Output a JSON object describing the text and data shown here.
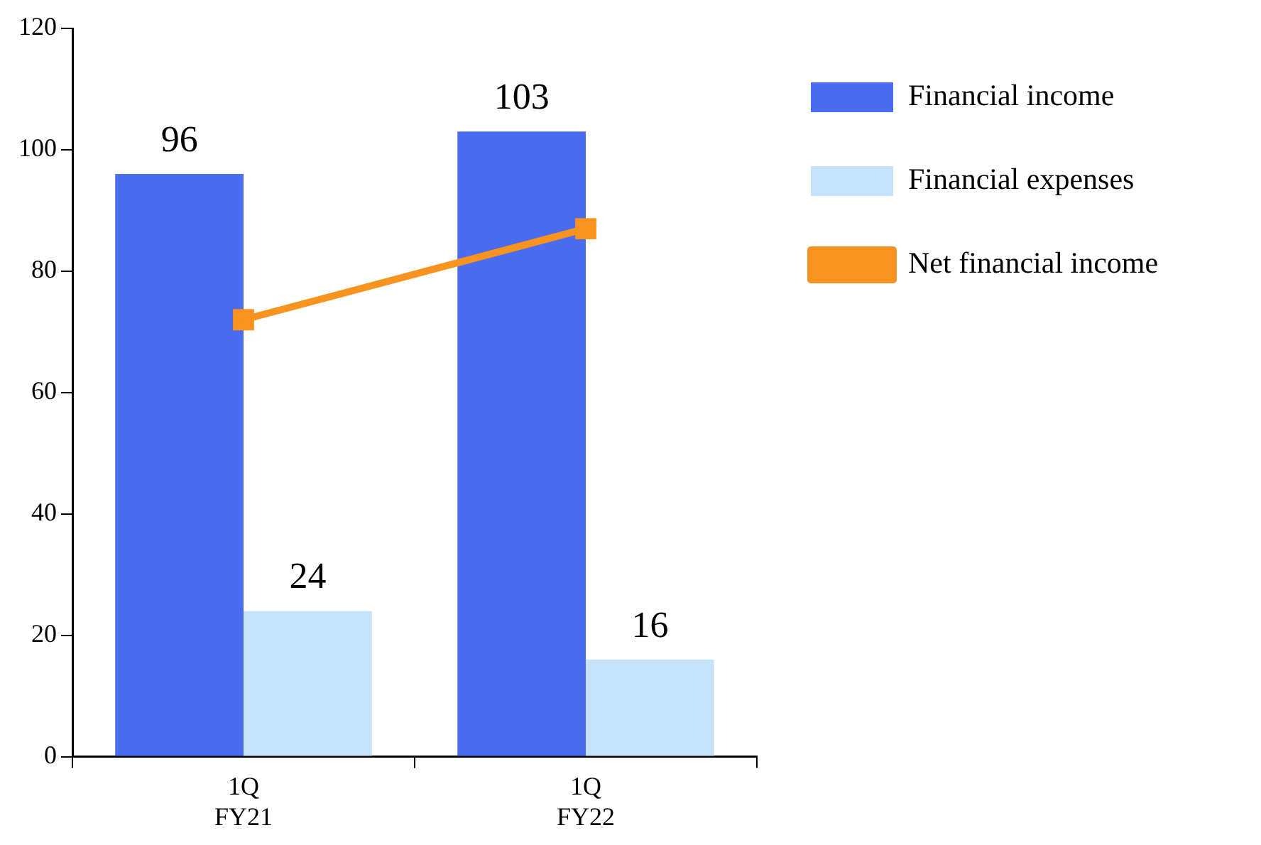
{
  "chart_data": {
    "type": "bar",
    "categories": [
      "1Q\nFY21",
      "1Q\nFY22"
    ],
    "series": [
      {
        "name": "Financial income",
        "type": "bar",
        "color": "#4a6cf0",
        "values": [
          96,
          103
        ],
        "value_labels": [
          "96",
          "103"
        ]
      },
      {
        "name": "Financial expenses",
        "type": "bar",
        "color": "#c6e2fb",
        "values": [
          24,
          16
        ],
        "value_labels": [
          "24",
          "16"
        ]
      },
      {
        "name": "Net financial income",
        "type": "line",
        "color": "#f7931e",
        "values": [
          72,
          87
        ],
        "marker": "square"
      }
    ],
    "ylim": [
      0,
      120
    ],
    "yticks": [
      0,
      20,
      40,
      60,
      80,
      100,
      120
    ],
    "grid": false,
    "legend": "right"
  }
}
